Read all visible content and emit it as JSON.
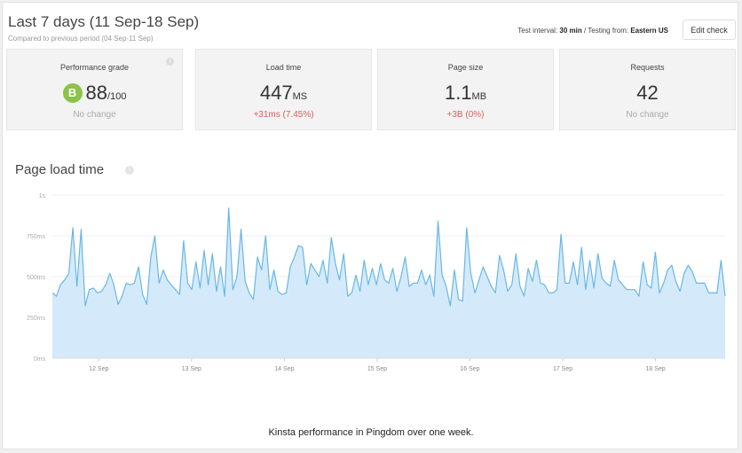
{
  "header": {
    "title": "Last 7 days (11 Sep-18 Sep)",
    "subtitle": "Compared to previous period (04 Sep-11 Sep)",
    "test_interval_label": "Test interval:",
    "test_interval_value": "30 min",
    "testing_from_label": "/ Testing from:",
    "testing_from_value": "Eastern US",
    "edit_button": "Edit check"
  },
  "cards": {
    "grade": {
      "label": "Performance grade",
      "badge": "B",
      "value": "88",
      "suffix": "/100",
      "sub": "No change",
      "badge_color": "#8bc34a"
    },
    "load": {
      "label": "Load time",
      "value": "447",
      "unit": "MS",
      "sub": "+31ms (7.45%)"
    },
    "size": {
      "label": "Page size",
      "value": "1.1",
      "unit": "MB",
      "sub": "+3B (0%)"
    },
    "requests": {
      "label": "Requests",
      "value": "42",
      "sub": "No change"
    }
  },
  "chart_title": "Page load time",
  "caption": "Kinsta performance in Pingdom over one week.",
  "colors": {
    "line": "#69b7e6",
    "fill": "#d4eafb",
    "grid": "#ececec",
    "negative": "#e05c5c"
  },
  "chart_data": {
    "type": "area",
    "title": "Page load time",
    "y_unit": "ms",
    "ylim": [
      0,
      1000
    ],
    "yticks": [
      {
        "value": 0,
        "label": "0ms"
      },
      {
        "value": 250,
        "label": "250ms"
      },
      {
        "value": 500,
        "label": "500ms"
      },
      {
        "value": 750,
        "label": "750ms"
      },
      {
        "value": 1000,
        "label": "1s"
      }
    ],
    "xlim": [
      0,
      7.25
    ],
    "xticks": [
      {
        "value": 0.5,
        "label": "12 Sep"
      },
      {
        "value": 1.5,
        "label": "13 Sep"
      },
      {
        "value": 2.5,
        "label": "14 Sep"
      },
      {
        "value": 3.5,
        "label": "15 Sep"
      },
      {
        "value": 4.5,
        "label": "16 Sep"
      },
      {
        "value": 5.5,
        "label": "17 Sep"
      },
      {
        "value": 6.5,
        "label": "18 Sep"
      }
    ],
    "grid": true,
    "legend": "none",
    "series": [
      {
        "values": [
          400,
          380,
          450,
          480,
          520,
          800,
          440,
          790,
          320,
          420,
          430,
          400,
          410,
          450,
          520,
          450,
          330,
          380,
          460,
          450,
          460,
          560,
          390,
          330,
          620,
          750,
          460,
          540,
          480,
          450,
          420,
          390,
          720,
          460,
          420,
          590,
          430,
          660,
          450,
          640,
          410,
          560,
          380,
          920,
          420,
          500,
          790,
          470,
          400,
          360,
          620,
          540,
          750,
          420,
          540,
          410,
          390,
          400,
          560,
          620,
          690,
          680,
          450,
          580,
          540,
          500,
          600,
          460,
          740,
          580,
          480,
          640,
          380,
          400,
          510,
          410,
          600,
          450,
          550,
          450,
          580,
          480,
          460,
          550,
          410,
          500,
          620,
          440,
          460,
          460,
          540,
          450,
          510,
          380,
          840,
          510,
          440,
          320,
          540,
          360,
          350,
          800,
          520,
          400,
          480,
          560,
          500,
          440,
          400,
          630,
          540,
          410,
          450,
          640,
          440,
          380,
          550,
          470,
          600,
          460,
          450,
          400,
          400,
          420,
          760,
          460,
          460,
          590,
          450,
          680,
          420,
          600,
          430,
          640,
          490,
          460,
          440,
          600,
          480,
          450,
          420,
          420,
          420,
          380,
          590,
          450,
          430,
          650,
          400,
          460,
          540,
          570,
          470,
          410,
          520,
          570,
          530,
          460,
          460,
          460,
          400,
          400,
          400,
          600,
          380
        ]
      }
    ]
  }
}
